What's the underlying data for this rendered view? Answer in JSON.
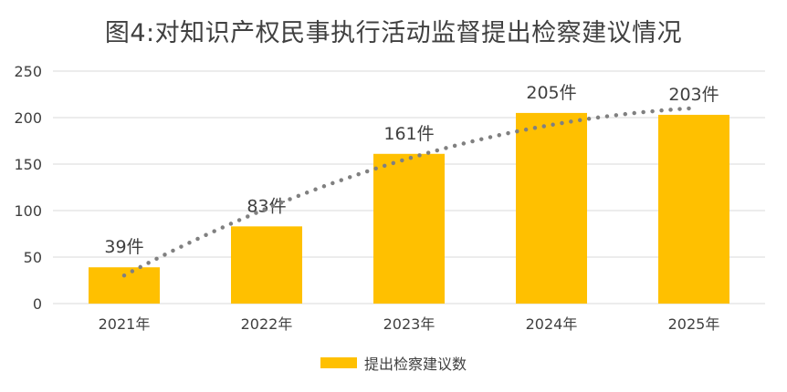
{
  "title": "图4:对知识产权民事执行活动监督提出检察建议情况",
  "chart_data": {
    "type": "bar",
    "title": "图4:对知识产权民事执行活动监督提出检察建议情况",
    "categories": [
      "2021年",
      "2022年",
      "2023年",
      "2024年",
      "2025年"
    ],
    "series": [
      {
        "name": "提出检察建议数",
        "values": [
          39,
          83,
          161,
          205,
          203
        ],
        "data_labels": [
          "39件",
          "83件",
          "161件",
          "205件",
          "203件"
        ],
        "color": "#FFC000"
      }
    ],
    "trendline": {
      "type": "polynomial",
      "style": "dotted",
      "color": "#808080"
    },
    "xlabel": "",
    "ylabel": "",
    "ylim": [
      0,
      250
    ],
    "yticks": [
      "0",
      "50",
      "100",
      "150",
      "200",
      "250"
    ],
    "grid": true,
    "legend_position": "bottom"
  },
  "legend": {
    "label": "提出检察建议数"
  }
}
